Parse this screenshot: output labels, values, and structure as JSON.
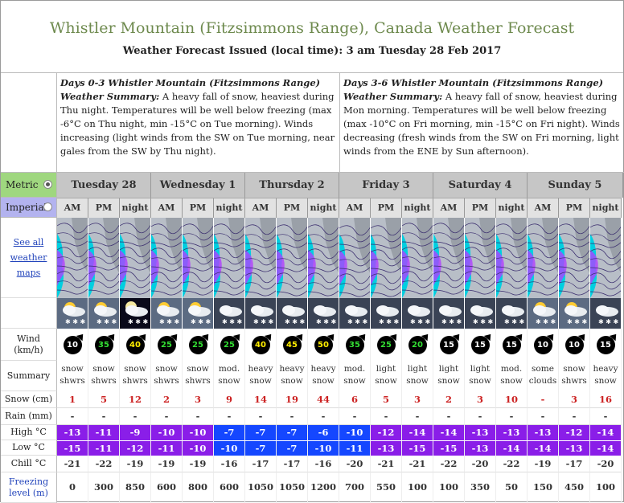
{
  "header": {
    "title": "Whistler Mountain (Fitzsimmons Range), Canada Weather Forecast",
    "issued": "Weather Forecast Issued (local time): 3 am Tuesday 28 Feb 2017"
  },
  "summaries": [
    {
      "heading": "Days 0-3 Whistler Mountain (Fitzsimmons Range)",
      "label": "Weather Summary:",
      "text": "A heavy fall of snow, heaviest during Thu night. Temperatures will be well below freezing (max -6°C on Thu night, min -15°C on Tue morning). Winds increasing (light winds from the SW on Tue morning, near gales from the SW by Thu night)."
    },
    {
      "heading": "Days 3-6 Whistler Mountain (Fitzsimmons Range)",
      "label": "Weather Summary:",
      "text": "A heavy fall of snow, heaviest during Mon morning. Temperatures will be well below freezing (max -10°C on Fri morning, min -15°C on Fri night). Winds decreasing (fresh winds from the SW on Fri morning, light winds from the ENE by Sun afternoon)."
    }
  ],
  "units": {
    "metric": "Metric",
    "imperial": "Imperial"
  },
  "days": [
    "Tuesday 28",
    "Wednesday 1",
    "Thursday 2",
    "Friday 3",
    "Saturday 4",
    "Sunday 5"
  ],
  "periods": [
    "AM",
    "PM",
    "night"
  ],
  "labels": {
    "maps": "See all weather maps",
    "wind": "Wind",
    "wind_unit": "(km/h)",
    "summary": "Summary",
    "snow": "Snow (cm)",
    "rain": "Rain (mm)",
    "high": "High °C",
    "low": "Low °C",
    "chill": "Chill °C",
    "freezing": "Freezing level (m)"
  },
  "wind": [
    "10",
    "35",
    "40",
    "25",
    "25",
    "25",
    "40",
    "45",
    "50",
    "35",
    "25",
    "20",
    "15",
    "15",
    "15",
    "10",
    "10",
    "15"
  ],
  "summary": [
    [
      "snow",
      "shwrs"
    ],
    [
      "snow",
      "shwrs"
    ],
    [
      "snow",
      "shwrs"
    ],
    [
      "snow",
      "shwrs"
    ],
    [
      "snow",
      "shwrs"
    ],
    [
      "mod.",
      "snow"
    ],
    [
      "heavy",
      "snow"
    ],
    [
      "heavy",
      "snow"
    ],
    [
      "heavy",
      "snow"
    ],
    [
      "mod.",
      "snow"
    ],
    [
      "light",
      "snow"
    ],
    [
      "light",
      "snow"
    ],
    [
      "light",
      "snow"
    ],
    [
      "light",
      "snow"
    ],
    [
      "mod.",
      "snow"
    ],
    [
      "some",
      "clouds"
    ],
    [
      "snow",
      "shwrs"
    ],
    [
      "heavy",
      "snow"
    ]
  ],
  "snow": [
    "1",
    "5",
    "12",
    "2",
    "3",
    "9",
    "14",
    "19",
    "44",
    "6",
    "5",
    "3",
    "2",
    "3",
    "10",
    "-",
    "3",
    "16"
  ],
  "rain": [
    "-",
    "-",
    "-",
    "-",
    "-",
    "-",
    "-",
    "-",
    "-",
    "-",
    "-",
    "-",
    "-",
    "-",
    "-",
    "-",
    "-",
    "-"
  ],
  "high": [
    "-13",
    "-11",
    "-9",
    "-10",
    "-10",
    "-7",
    "-7",
    "-7",
    "-6",
    "-10",
    "-12",
    "-14",
    "-14",
    "-13",
    "-13",
    "-13",
    "-12",
    "-14"
  ],
  "low": [
    "-15",
    "-11",
    "-12",
    "-11",
    "-10",
    "-10",
    "-7",
    "-7",
    "-10",
    "-11",
    "-13",
    "-15",
    "-15",
    "-13",
    "-14",
    "-14",
    "-13",
    "-14"
  ],
  "chill": [
    "-21",
    "-22",
    "-19",
    "-19",
    "-19",
    "-16",
    "-17",
    "-17",
    "-16",
    "-20",
    "-21",
    "-21",
    "-22",
    "-20",
    "-22",
    "-19",
    "-17",
    "-20"
  ],
  "freezing": [
    "0",
    "300",
    "850",
    "600",
    "800",
    "600",
    "1050",
    "1050",
    "1200",
    "700",
    "550",
    "100",
    "100",
    "350",
    "50",
    "150",
    "450",
    "100"
  ],
  "colors": {
    "title": "#6e8a4e",
    "snow": "#cc2222",
    "purple": "#8a1ee8",
    "blue": "#1547ff",
    "metric_bg": "#9fd77f",
    "imperial_bg": "#b3b3ef"
  }
}
